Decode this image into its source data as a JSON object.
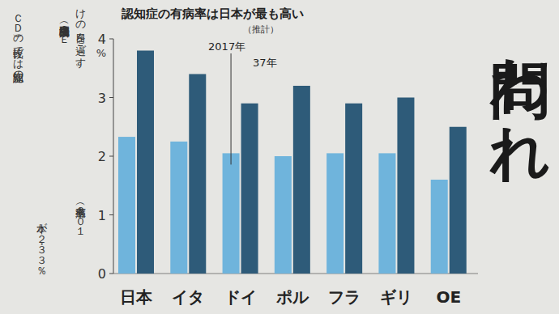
{
  "chart_data": {
    "type": "bar",
    "title": "認知症の有病率は日本が最も高い",
    "subtitle": "（推計）",
    "ylabel": "%",
    "categories": [
      "日本",
      "イタ",
      "ドイ",
      "ポル",
      "フラ",
      "ギリ",
      "OE"
    ],
    "series": [
      {
        "name": "2017年",
        "color": "#6fb4dc",
        "values": [
          2.33,
          2.25,
          2.05,
          2.0,
          2.05,
          2.05,
          1.6
        ]
      },
      {
        "name": "37年",
        "color": "#2e5b79",
        "values": [
          3.8,
          3.4,
          2.9,
          3.2,
          2.9,
          3.0,
          2.5
        ]
      }
    ],
    "ylim": [
      0,
      4
    ],
    "yticks": [
      0,
      1,
      2,
      3,
      4
    ],
    "grid": false,
    "annotations": [
      "けの日々を過ごす。",
      "経済協力開発機構（ＯＥ",
      "ＣＤ）の比較では認知症の",
      "有病率（２０１",
      "本が２・３３％",
      "問われ"
    ]
  }
}
